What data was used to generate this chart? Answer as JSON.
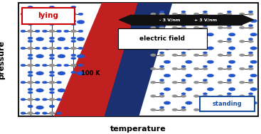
{
  "fig_width": 3.67,
  "fig_height": 1.89,
  "dpi": 100,
  "bg_color": "#ffffff",
  "border_color": "#1a1a1a",
  "lying_label": "lying",
  "lying_label_color": "#cc0000",
  "lying_box_color": "#cc0000",
  "standing_label": "standing",
  "standing_label_color": "#1a4fa0",
  "standing_box_color": "#1a4fa0",
  "pressure_label": "pressure",
  "temperature_label": "temperature",
  "electric_field_label": "electric field",
  "field_minus": "- 3 V/nm",
  "field_plus": "+ 3 V/nm",
  "temp_label": "100 K",
  "red_color": "#c02020",
  "blue_color": "#1a3070",
  "black_arrow_color": "#111111",
  "mol_gray": "#909090",
  "mol_blue": "#2255cc",
  "mol_dark": "#222222",
  "mol_edge": "#333333"
}
